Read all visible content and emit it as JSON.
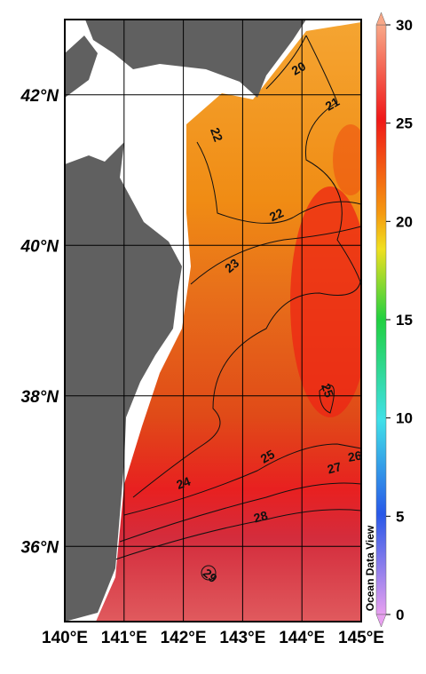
{
  "map": {
    "lonlim": [
      140,
      145
    ],
    "latlim": [
      35,
      43
    ],
    "lon_ticks": [
      {
        "value": 140,
        "label": "140°E"
      },
      {
        "value": 141,
        "label": "141°E"
      },
      {
        "value": 142,
        "label": "142°E"
      },
      {
        "value": 143,
        "label": "143°E"
      },
      {
        "value": 144,
        "label": "144°E"
      },
      {
        "value": 145,
        "label": "145°E"
      }
    ],
    "lat_ticks": [
      {
        "value": 36,
        "label": "36°N"
      },
      {
        "value": 38,
        "label": "38°N"
      },
      {
        "value": 40,
        "label": "40°N"
      },
      {
        "value": 42,
        "label": "42°N"
      }
    ],
    "colorbar": {
      "lim": [
        0,
        30
      ],
      "ticks": [
        0,
        5,
        10,
        15,
        20,
        25,
        30
      ]
    },
    "contour_labels": [
      "20",
      "21",
      "22",
      "22",
      "23",
      "24",
      "25",
      "25",
      "26",
      "27",
      "28",
      "29"
    ],
    "watermark": "Ocean Data View"
  }
}
